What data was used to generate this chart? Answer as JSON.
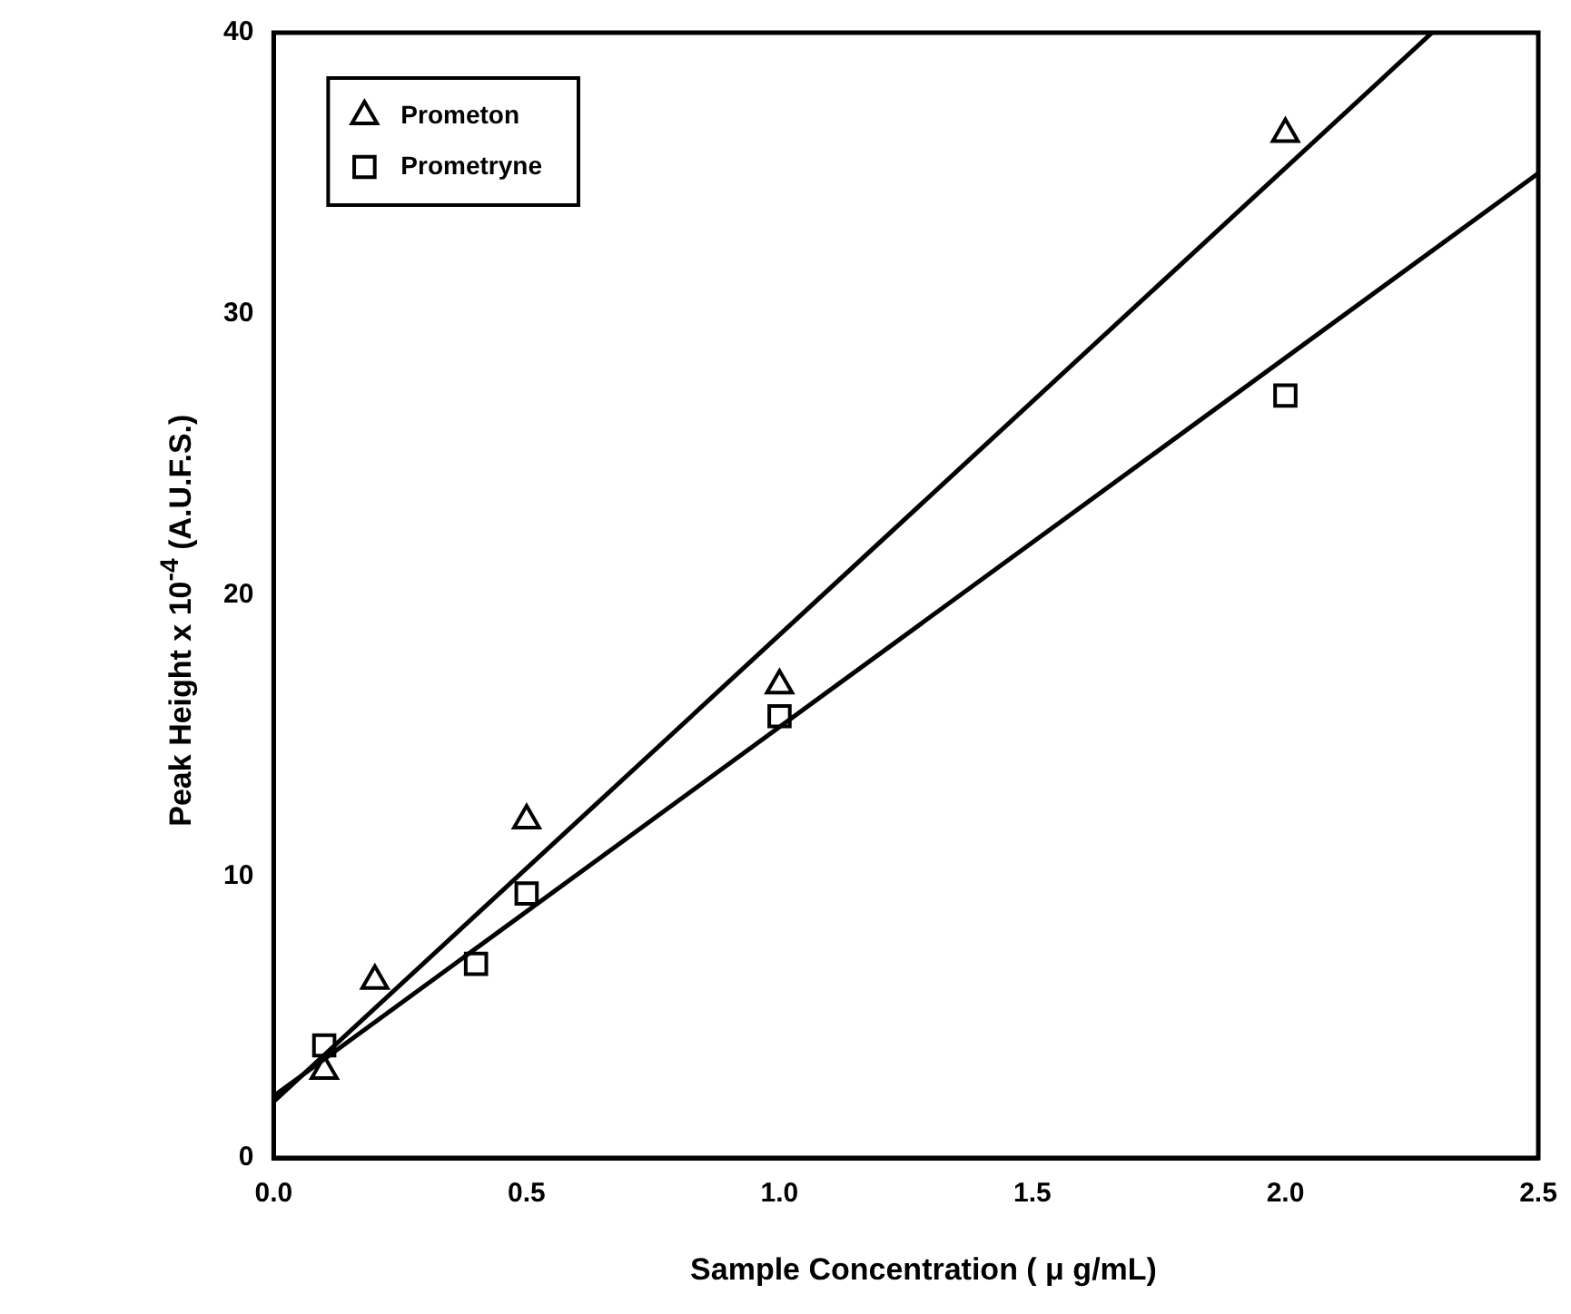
{
  "chart_data": {
    "type": "scatter",
    "xlabel": "Sample Concentration ( μ g/mL)",
    "ylabel": "Peak Height x 10$^{-4}$ (A.U.F.S.)",
    "xlim": [
      0,
      2.5
    ],
    "xticks": [
      {
        "value": 0,
        "label": "0.0"
      },
      {
        "value": 0.5,
        "label": "0.5"
      },
      {
        "value": 1,
        "label": "1.0"
      },
      {
        "value": 1.5,
        "label": "1.5"
      },
      {
        "value": 2,
        "label": "2.0"
      },
      {
        "value": 2.5,
        "label": "2.5"
      }
    ],
    "ylim": [
      0,
      40
    ],
    "yticks": [
      0,
      10,
      20,
      30,
      40
    ],
    "grid": false,
    "legend": "top left",
    "series": [
      {
        "name": "Prometon",
        "color": "#000000",
        "marker": "triangle",
        "x": [
          0.1,
          0.2,
          0.5,
          1.0,
          2.0
        ],
        "values": [
          3.1,
          6.3,
          12.0,
          16.8,
          36.4
        ]
      },
      {
        "name": "Prometryne",
        "color": "#000000",
        "marker": "square",
        "x": [
          0.1,
          0.4,
          0.5,
          1.0,
          2.0
        ],
        "values": [
          4.0,
          6.9,
          9.4,
          15.7,
          27.1
        ]
      },
      {
        "type": "line",
        "color": "#000000",
        "marker": "none",
        "x": [
          0,
          2.29
        ],
        "values": [
          2.0,
          40
        ]
      },
      {
        "type": "line",
        "color": "#000000",
        "marker": "none",
        "x": [
          0,
          2.5
        ],
        "values": [
          2.2,
          35
        ]
      }
    ]
  }
}
